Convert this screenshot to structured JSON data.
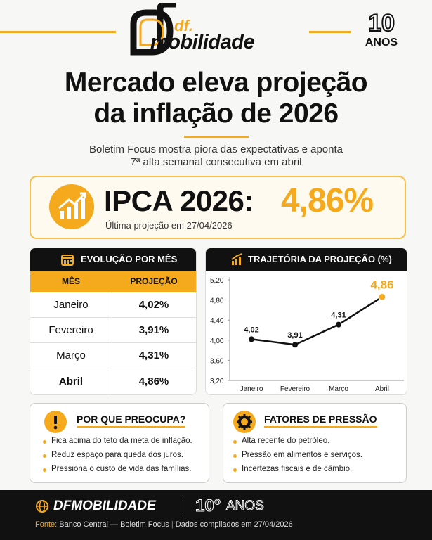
{
  "header": {
    "logo_small": "df.",
    "logo_main": "mobilidade",
    "anniversary_number": "10",
    "anniversary_label": "ANOS"
  },
  "headline": {
    "lines": [
      "Mercado eleva projeção",
      "da inflação de 2026"
    ],
    "subtitle_lines": [
      "Boletim Focus mostra piora das expectativas e aponta",
      "7ª alta semanal consecutiva em abril"
    ]
  },
  "highlight": {
    "label": "IPCA 2026:",
    "value": "4,86%",
    "note": "Última projeção em 27/04/2026"
  },
  "table": {
    "title": "EVOLUÇÃO POR MÊS",
    "columns": [
      "MÊS",
      "PROJEÇÃO"
    ],
    "rows": [
      [
        "Janeiro",
        "4,02%"
      ],
      [
        "Fevereiro",
        "3,91%"
      ],
      [
        "Março",
        "4,31%"
      ],
      [
        "Abril",
        "4,86%"
      ]
    ]
  },
  "chart_data": {
    "type": "line",
    "title": "TRAJETÓRIA DA PROJEÇÃO (%)",
    "categories": [
      "Janeiro",
      "Fevereiro",
      "Março",
      "Abril"
    ],
    "values": [
      4.02,
      3.91,
      4.31,
      4.86
    ],
    "value_labels": [
      "4,02",
      "3,91",
      "4,31",
      "4,86"
    ],
    "color": "#111111",
    "highlight_color": "#f5a91c",
    "ylim": [
      3.2,
      5.2
    ],
    "yticks": [
      {
        "value": 3.2,
        "label": "3,20"
      },
      {
        "value": 3.6,
        "label": "3,60"
      },
      {
        "value": 4.0,
        "label": "4,00"
      },
      {
        "value": 4.4,
        "label": "4,40"
      },
      {
        "value": 4.8,
        "label": "4,80"
      },
      {
        "value": 5.2,
        "label": "5,20"
      }
    ],
    "grid": false
  },
  "cards": [
    {
      "title": "POR QUE PREOCUPA?",
      "items": [
        "Fica acima do teto da meta de inflação.",
        "Reduz espaço para queda dos juros.",
        "Pressiona o custo de vida das famílias."
      ]
    },
    {
      "title": "FATORES DE PRESSÃO",
      "items": [
        "Alta recente do petróleo.",
        "Pressão em alimentos e serviços.",
        "Incertezas fiscais e de câmbio."
      ]
    }
  ],
  "footer": {
    "brand": "DFMOBILIDADE",
    "anniversary_number": "10°",
    "anniversary_label": "ANOS",
    "source_label": "Fonte:",
    "source": "Banco Central — Boletim Focus",
    "compiled": "Dados compilados em 27/04/2026"
  }
}
